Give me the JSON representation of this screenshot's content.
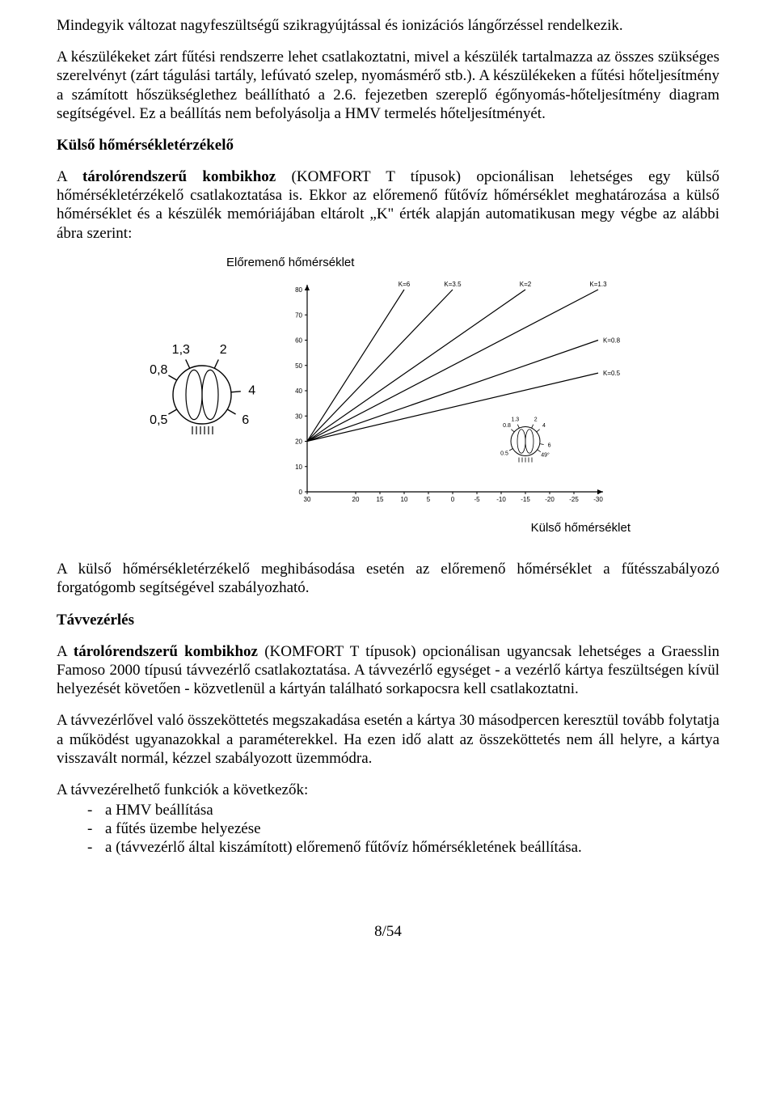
{
  "para1": "Mindegyik változat nagyfeszültségű szikragyújtással és ionizációs lángőrzéssel rendelkezik.",
  "para2": "A készülékeket zárt fűtési rendszerre lehet csatlakoztatni, mivel a készülék tartalmazza az összes szükséges szerelvényt (zárt tágulási tartály, lefúvató szelep, nyomásmérő stb.). A készülékeken a fűtési hőteljesítmény a számított hőszükséglethez beállítható a 2.6. fejezetben szereplő égőnyomás-hőteljesítmény diagram segítségével. Ez a beállítás nem befolyásolja a HMV termelés hőteljesítményét.",
  "heading1": "Külső hőmérsékletérzékelő",
  "para3_run1": "A ",
  "para3_run2": "tárolórendszerű kombikhoz",
  "para3_run3": " (KOMFORT T típusok) opcionálisan lehetséges egy külső hőmérsékletérzékelő csatlakoztatása is. Ekkor az előremenő fűtővíz hőmérséklet meghatározása a külső hőmérséklet és a készülék memóriájában eltárolt „K\" érték alapján automatikusan megy végbe az alábbi ábra szerint:",
  "para4": "A külső hőmérsékletérzékelő meghibásodása esetén az előremenő hőmérséklet a fűtésszabályozó forgatógomb segítségével szabályozható.",
  "heading2": "Távvezérlés",
  "para5_run1": "A ",
  "para5_run2": "tárolórendszerű kombikhoz",
  "para5_run3": " (KOMFORT T típusok) opcionálisan ugyancsak lehetséges a Graesslin Famoso 2000 típusú távvezérlő csatlakoztatása. A távvezérlő egységet - a vezérlő kártya feszültségen kívül helyezését követően - közvetlenül a kártyán található sorkapocsra kell csatlakoztatni.",
  "para6": "A távvezérlővel való összeköttetés megszakadása esetén a kártya 30 másodpercen keresztül tovább folytatja a működést ugyanazokkal a paraméterekkel. Ha ezen idő alatt az összeköttetés nem áll helyre, a kártya visszavált normál, kézzel szabályozott üzemmódra.",
  "para7": "A távvezérelhető funkciók a következők:",
  "list": [
    "a HMV beállítása",
    "a fűtés üzembe helyezése",
    "a (távvezérlő által kiszámított) előremenő fűtővíz hőmérsékletének beállítása."
  ],
  "chart": {
    "y_title": "Előremenő hőmérséklet",
    "x_title": "Külső hőmérséklet",
    "y_ticks": [
      80,
      70,
      60,
      50,
      40,
      30,
      20,
      10,
      0
    ],
    "x_ticks": [
      30,
      20,
      15,
      10,
      5,
      0,
      -5,
      -10,
      -15,
      -20,
      -25,
      -30
    ],
    "x_tick_labels": [
      "30",
      "20",
      "15",
      "10",
      "5",
      "0",
      "-5",
      "-10",
      "-15",
      "-20",
      "-25",
      "-30"
    ],
    "origin_xval": 30,
    "origin_yval": 20,
    "k_top": [
      {
        "label": "K=6",
        "x_at_y80": 10
      },
      {
        "label": "K=3.5",
        "x_at_y80": 0
      },
      {
        "label": "K=2",
        "x_at_y80": -15
      },
      {
        "label": "K=1.3",
        "x_at_y80": -30
      }
    ],
    "k_right": [
      {
        "label": "K=0.8",
        "y_at_xmin": 60
      },
      {
        "label": "K=0.5",
        "y_at_xmin": 47
      }
    ],
    "line_color": "#000000",
    "line_width": 1.2,
    "tick_font": 8,
    "ktop_font": 8,
    "dial_big": {
      "labels": [
        "1,3",
        "2",
        "4",
        "6",
        "0,5",
        "0,8"
      ],
      "label_font": 16
    },
    "dial_small": {
      "labels": [
        "1.3",
        "2",
        "4",
        "6",
        "49°",
        "0.5",
        "0.8"
      ],
      "label_font": 7
    }
  },
  "pagenum": "8/54"
}
